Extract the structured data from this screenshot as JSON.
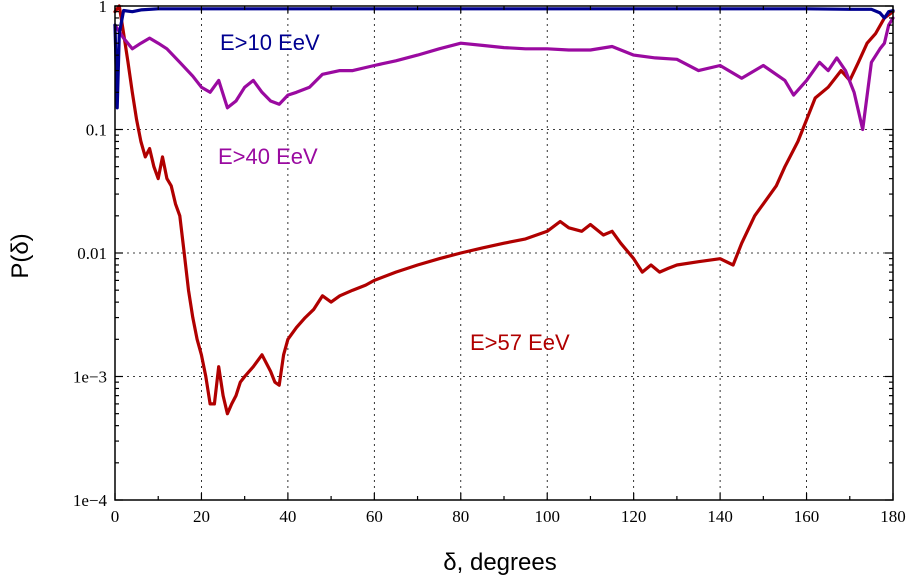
{
  "chart_data": {
    "type": "line",
    "xlabel": "δ,  degrees",
    "ylabel": "P(δ)",
    "xlim": [
      0,
      180
    ],
    "ylim": [
      0.0001,
      1
    ],
    "yscale": "log",
    "grid": true,
    "x_ticks": [
      0,
      20,
      40,
      60,
      80,
      100,
      120,
      140,
      160,
      180
    ],
    "x_tick_labels": [
      "0",
      "20",
      "40",
      "60",
      "80",
      "100",
      "120",
      "140",
      "160",
      "180"
    ],
    "y_ticks": [
      0.0001,
      0.001,
      0.01,
      0.1,
      1
    ],
    "y_tick_labels": [
      "1e−4",
      "1e−3",
      "0.01",
      "0.1",
      "1"
    ],
    "series": [
      {
        "name": "E>10 EeV",
        "color": "#000090",
        "x": [
          0,
          0.5,
          1,
          2,
          4,
          6,
          10,
          20,
          40,
          60,
          80,
          100,
          120,
          140,
          160,
          170,
          175,
          177,
          178,
          179,
          180
        ],
        "y": [
          0.7,
          0.15,
          0.6,
          0.92,
          0.9,
          0.93,
          0.95,
          0.95,
          0.95,
          0.95,
          0.95,
          0.95,
          0.95,
          0.95,
          0.95,
          0.94,
          0.94,
          0.88,
          0.8,
          0.9,
          0.92
        ]
      },
      {
        "name": "E>40 EeV",
        "color": "#9a0aa0",
        "x": [
          0,
          2,
          4,
          6,
          8,
          10,
          12,
          15,
          18,
          20,
          22,
          24,
          26,
          28,
          30,
          32,
          34,
          36,
          38,
          40,
          42,
          45,
          48,
          52,
          55,
          60,
          65,
          70,
          75,
          80,
          85,
          90,
          95,
          100,
          105,
          110,
          115,
          120,
          125,
          130,
          135,
          140,
          145,
          150,
          155,
          157,
          160,
          163,
          165,
          167,
          169,
          171,
          173,
          175,
          177,
          178,
          179,
          180
        ],
        "y": [
          0.7,
          0.55,
          0.45,
          0.5,
          0.55,
          0.5,
          0.45,
          0.35,
          0.27,
          0.22,
          0.2,
          0.25,
          0.15,
          0.17,
          0.22,
          0.25,
          0.2,
          0.17,
          0.16,
          0.19,
          0.2,
          0.22,
          0.28,
          0.3,
          0.3,
          0.33,
          0.36,
          0.4,
          0.45,
          0.5,
          0.48,
          0.46,
          0.45,
          0.45,
          0.44,
          0.44,
          0.47,
          0.4,
          0.38,
          0.37,
          0.3,
          0.33,
          0.26,
          0.33,
          0.25,
          0.19,
          0.25,
          0.35,
          0.3,
          0.38,
          0.3,
          0.2,
          0.1,
          0.35,
          0.45,
          0.5,
          0.7,
          0.8
        ]
      },
      {
        "name": "E>57 EeV",
        "color": "#b00000",
        "x": [
          0,
          1,
          2,
          3,
          4,
          5,
          6,
          7,
          8,
          9,
          10,
          11,
          12,
          13,
          14,
          15,
          16,
          17,
          18,
          19,
          20,
          21,
          22,
          23,
          24,
          25,
          26,
          27,
          28,
          29,
          30,
          32,
          34,
          36,
          37,
          38,
          39,
          40,
          42,
          44,
          46,
          48,
          50,
          52,
          55,
          58,
          60,
          65,
          70,
          75,
          80,
          85,
          90,
          95,
          100,
          103,
          105,
          108,
          110,
          113,
          115,
          117,
          120,
          122,
          124,
          126,
          128,
          130,
          135,
          140,
          143,
          145,
          148,
          150,
          153,
          155,
          158,
          160,
          162,
          165,
          168,
          170,
          172,
          174,
          176,
          178,
          180
        ],
        "y": [
          0.9,
          1.0,
          0.6,
          0.35,
          0.2,
          0.12,
          0.08,
          0.06,
          0.07,
          0.05,
          0.04,
          0.06,
          0.04,
          0.035,
          0.025,
          0.02,
          0.01,
          0.005,
          0.003,
          0.002,
          0.0015,
          0.001,
          0.0006,
          0.0006,
          0.0012,
          0.0007,
          0.0005,
          0.0006,
          0.0007,
          0.0009,
          0.001,
          0.0012,
          0.0015,
          0.0011,
          0.0009,
          0.00085,
          0.0015,
          0.002,
          0.0025,
          0.003,
          0.0035,
          0.0045,
          0.004,
          0.0045,
          0.005,
          0.0055,
          0.006,
          0.007,
          0.008,
          0.009,
          0.01,
          0.011,
          0.012,
          0.013,
          0.015,
          0.018,
          0.016,
          0.015,
          0.017,
          0.014,
          0.015,
          0.012,
          0.009,
          0.007,
          0.008,
          0.007,
          0.0075,
          0.008,
          0.0085,
          0.009,
          0.008,
          0.012,
          0.02,
          0.025,
          0.035,
          0.05,
          0.08,
          0.12,
          0.18,
          0.22,
          0.3,
          0.25,
          0.35,
          0.5,
          0.6,
          0.8,
          0.9
        ]
      }
    ]
  }
}
